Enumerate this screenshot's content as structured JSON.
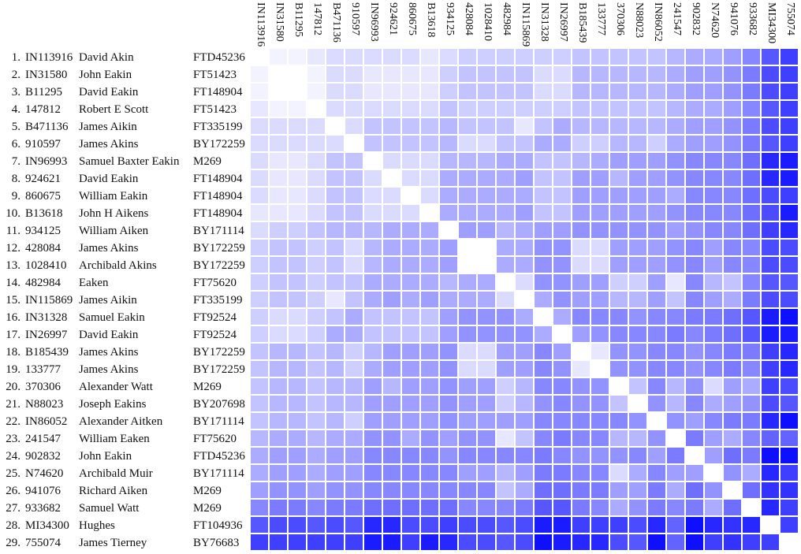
{
  "chart_data": {
    "type": "heatmap",
    "title": "",
    "color_scale": {
      "low": "#ffffff",
      "high": "#0f0fff",
      "min_level": 0,
      "max_level": 20
    },
    "rows": [
      {
        "num": "1.",
        "kit": "IN113916",
        "name": "David Akin",
        "haplogroup": "FTD45236"
      },
      {
        "num": "2.",
        "kit": "IN31580",
        "name": "John Eakin",
        "haplogroup": "FT51423"
      },
      {
        "num": "3.",
        "kit": "B11295",
        "name": "David Eakin",
        "haplogroup": "FT148904"
      },
      {
        "num": "4.",
        "kit": "147812",
        "name": "Robert E Scott",
        "haplogroup": "FT51423"
      },
      {
        "num": "5.",
        "kit": "B471136",
        "name": "James Aikin",
        "haplogroup": "FT335199"
      },
      {
        "num": "6.",
        "kit": "910597",
        "name": "James Akins",
        "haplogroup": "BY172259"
      },
      {
        "num": "7.",
        "kit": "IN96993",
        "name": "Samuel Baxter Eakin",
        "haplogroup": "M269"
      },
      {
        "num": "8.",
        "kit": "924621",
        "name": "David Eakin",
        "haplogroup": "FT148904"
      },
      {
        "num": "9.",
        "kit": "860675",
        "name": "William Eakin",
        "haplogroup": "FT148904"
      },
      {
        "num": "10.",
        "kit": "B13618",
        "name": "John H Aikens",
        "haplogroup": "FT148904"
      },
      {
        "num": "11.",
        "kit": "934125",
        "name": "William Aiken",
        "haplogroup": "BY171114"
      },
      {
        "num": "12.",
        "kit": "428084",
        "name": "James Akins",
        "haplogroup": "BY172259"
      },
      {
        "num": "13.",
        "kit": "1028410",
        "name": "Archibald Akins",
        "haplogroup": "BY172259"
      },
      {
        "num": "14.",
        "kit": "482984",
        "name": "Eaken",
        "haplogroup": "FT75620"
      },
      {
        "num": "15.",
        "kit": "IN115869",
        "name": "James Aikin",
        "haplogroup": "FT335199"
      },
      {
        "num": "16.",
        "kit": "IN31328",
        "name": "Samuel Eakin",
        "haplogroup": "FT92524"
      },
      {
        "num": "17.",
        "kit": "IN26997",
        "name": "David Eakin",
        "haplogroup": "FT92524"
      },
      {
        "num": "18.",
        "kit": "B185439",
        "name": "James Akins",
        "haplogroup": "BY172259"
      },
      {
        "num": "19.",
        "kit": "133777",
        "name": "James Akins",
        "haplogroup": "BY172259"
      },
      {
        "num": "20.",
        "kit": "370306",
        "name": "Alexander Watt",
        "haplogroup": "M269"
      },
      {
        "num": "21.",
        "kit": "N88023",
        "name": "Joseph Eakins",
        "haplogroup": "BY207698"
      },
      {
        "num": "22.",
        "kit": "IN86052",
        "name": "Alexander Aitken",
        "haplogroup": "BY171114"
      },
      {
        "num": "23.",
        "kit": "241547",
        "name": "William Eaken",
        "haplogroup": "FT75620"
      },
      {
        "num": "24.",
        "kit": "902832",
        "name": "John Eakin",
        "haplogroup": "FTD45236"
      },
      {
        "num": "25.",
        "kit": "N74620",
        "name": "Archibald Muir",
        "haplogroup": "BY171114"
      },
      {
        "num": "26.",
        "kit": "941076",
        "name": "Richard Aiken",
        "haplogroup": "M269"
      },
      {
        "num": "27.",
        "kit": "933682",
        "name": "Samuel Watt",
        "haplogroup": "M269"
      },
      {
        "num": "28.",
        "kit": "MI34300",
        "name": "Hughes",
        "haplogroup": "FT104936"
      },
      {
        "num": "29.",
        "kit": "755074",
        "name": "James Tierney",
        "haplogroup": "BY76683"
      }
    ],
    "columns": [
      "IN113916",
      "IN31580",
      "B11295",
      "147812",
      "B471136",
      "910597",
      "IN96993",
      "924621",
      "860675",
      "B13618",
      "934125",
      "428084",
      "1028410",
      "482984",
      "IN115869",
      "IN31328",
      "IN26997",
      "B185439",
      "133777",
      "370306",
      "N88023",
      "IN86052",
      "241547",
      "902832",
      "N74620",
      "941076",
      "933682",
      "MI34300",
      "755074"
    ],
    "upper_triangle_levels": [
      [
        1,
        1,
        2,
        3,
        3,
        3,
        3,
        3,
        2,
        3,
        4,
        4,
        4,
        4,
        4,
        4,
        5,
        5,
        5,
        5,
        5,
        6,
        7,
        7,
        8,
        10,
        14,
        16
      ],
      [
        0,
        1,
        3,
        3,
        2,
        2,
        2,
        2,
        4,
        5,
        5,
        5,
        5,
        3,
        3,
        6,
        6,
        6,
        6,
        6,
        7,
        8,
        8,
        9,
        11,
        15,
        16
      ],
      [
        1,
        3,
        3,
        2,
        2,
        2,
        2,
        4,
        5,
        5,
        5,
        5,
        3,
        3,
        6,
        6,
        6,
        6,
        6,
        7,
        8,
        8,
        9,
        11,
        15,
        16
      ],
      [
        3,
        3,
        3,
        3,
        3,
        3,
        5,
        4,
        4,
        4,
        4,
        4,
        4,
        5,
        5,
        5,
        5,
        5,
        6,
        7,
        7,
        8,
        10,
        14,
        16
      ],
      [
        3,
        5,
        5,
        5,
        5,
        6,
        5,
        5,
        5,
        2,
        5,
        7,
        6,
        6,
        6,
        6,
        6,
        7,
        8,
        8,
        9,
        11,
        15,
        16
      ],
      [
        5,
        5,
        5,
        5,
        6,
        3,
        3,
        5,
        5,
        7,
        7,
        4,
        4,
        6,
        6,
        4,
        7,
        8,
        8,
        9,
        11,
        14,
        16
      ],
      [
        3,
        3,
        3,
        6,
        6,
        6,
        7,
        7,
        5,
        5,
        6,
        7,
        8,
        8,
        8,
        9,
        10,
        10,
        10,
        12,
        18,
        19
      ],
      [
        3,
        3,
        7,
        7,
        7,
        7,
        8,
        5,
        5,
        8,
        8,
        6,
        8,
        8,
        9,
        10,
        10,
        10,
        12,
        18,
        19
      ],
      [
        3,
        7,
        7,
        7,
        7,
        7,
        5,
        5,
        8,
        8,
        8,
        8,
        8,
        7,
        10,
        10,
        10,
        12,
        15,
        16
      ],
      [
        7,
        7,
        7,
        7,
        8,
        5,
        5,
        8,
        8,
        8,
        8,
        8,
        9,
        10,
        10,
        10,
        12,
        15,
        19
      ],
      [
        8,
        8,
        6,
        7,
        8,
        8,
        9,
        9,
        9,
        9,
        9,
        8,
        9,
        10,
        10,
        12,
        16,
        18
      ],
      [
        0,
        7,
        7,
        9,
        9,
        3,
        3,
        8,
        8,
        8,
        9,
        10,
        8,
        10,
        10,
        15,
        15
      ],
      [
        7,
        7,
        9,
        9,
        3,
        3,
        8,
        8,
        8,
        9,
        10,
        8,
        10,
        10,
        15,
        15
      ],
      [
        3,
        9,
        9,
        8,
        8,
        4,
        4,
        8,
        2,
        10,
        6,
        5,
        10,
        14,
        14
      ],
      [
        7,
        9,
        8,
        8,
        6,
        6,
        8,
        5,
        10,
        8,
        7,
        11,
        15,
        15
      ],
      [
        7,
        10,
        10,
        10,
        9,
        10,
        10,
        11,
        11,
        12,
        14,
        19,
        20
      ],
      [
        8,
        9,
        10,
        10,
        10,
        11,
        10,
        11,
        12,
        14,
        19,
        19
      ],
      [
        2,
        9,
        9,
        10,
        10,
        9,
        10,
        11,
        11,
        16,
        18
      ],
      [
        9,
        9,
        10,
        10,
        9,
        10,
        11,
        10,
        16,
        18
      ],
      [
        5,
        10,
        6,
        9,
        3,
        8,
        7,
        16,
        15
      ],
      [
        9,
        6,
        10,
        7,
        8,
        9,
        15,
        14
      ],
      [
        9,
        8,
        10,
        11,
        11,
        18,
        20
      ],
      [
        11,
        8,
        7,
        10,
        13,
        13
      ],
      [
        8,
        12,
        11,
        20,
        20
      ],
      [
        9,
        7,
        18,
        16
      ],
      [
        12,
        17,
        17
      ],
      [
        18,
        16
      ],
      [
        16
      ],
      []
    ],
    "symmetric": true
  }
}
